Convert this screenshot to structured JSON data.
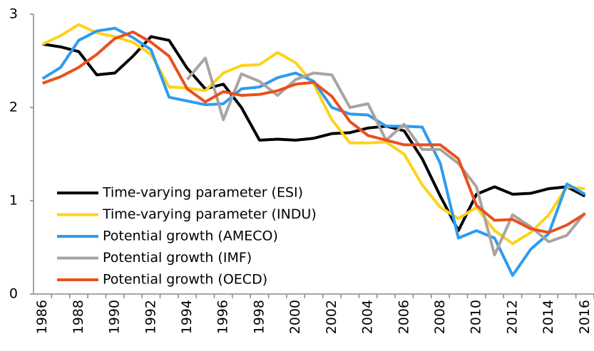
{
  "chart_data": {
    "type": "line",
    "categories": [
      "1986",
      null,
      "1988",
      null,
      "1990",
      null,
      "1992",
      null,
      "1994",
      null,
      "1996",
      null,
      "1998",
      null,
      "2000",
      null,
      "2002",
      null,
      "2004",
      null,
      "2006",
      null,
      "2008",
      null,
      "2010",
      null,
      "2012",
      null,
      "2014",
      null,
      "2016"
    ],
    "ylim": [
      0,
      3
    ],
    "yticks": [
      0,
      1,
      2,
      3
    ],
    "legend": "middle-left",
    "series": [
      {
        "name": "Time-varying parameter (ESI)",
        "color": "#000000",
        "values": [
          2.68,
          2.65,
          2.6,
          2.35,
          2.37,
          2.55,
          2.76,
          2.72,
          2.42,
          2.2,
          2.25,
          2.0,
          1.65,
          1.66,
          1.65,
          1.67,
          1.72,
          1.73,
          1.78,
          1.8,
          1.75,
          1.45,
          1.05,
          0.68,
          1.07,
          1.15,
          1.07,
          1.08,
          1.13,
          1.15,
          1.05
        ]
      },
      {
        "name": "Time-varying parameter (INDU)",
        "color": "#ffd21a",
        "values": [
          2.68,
          2.77,
          2.89,
          2.8,
          2.76,
          2.7,
          2.57,
          2.22,
          2.21,
          2.18,
          2.37,
          2.45,
          2.46,
          2.59,
          2.48,
          2.25,
          1.87,
          1.62,
          1.62,
          1.63,
          1.5,
          1.17,
          0.93,
          0.81,
          0.93,
          0.68,
          0.54,
          0.66,
          0.85,
          1.15,
          1.13
        ]
      },
      {
        "name": "Potential growth (AMECO)",
        "color": "#2e9bf0",
        "values": [
          2.31,
          2.43,
          2.72,
          2.82,
          2.85,
          2.75,
          2.62,
          2.11,
          2.07,
          2.03,
          2.04,
          2.2,
          2.22,
          2.32,
          2.37,
          2.28,
          2.0,
          1.93,
          1.92,
          1.8,
          1.8,
          1.79,
          1.4,
          0.6,
          0.68,
          0.6,
          0.2,
          0.48,
          0.65,
          1.18,
          1.07
        ]
      },
      {
        "name": "Potential growth (IMF)",
        "color": "#aaa39e",
        "values": [
          null,
          null,
          null,
          null,
          null,
          null,
          null,
          null,
          2.3,
          2.53,
          1.87,
          2.36,
          2.28,
          2.13,
          2.3,
          2.37,
          2.35,
          2.0,
          2.04,
          1.65,
          1.82,
          1.55,
          1.55,
          1.4,
          1.15,
          0.42,
          0.85,
          0.72,
          0.56,
          0.63,
          0.87
        ]
      },
      {
        "name": "Potential growth (OECD)",
        "color": "#e8501e",
        "values": [
          2.26,
          2.33,
          2.43,
          2.57,
          2.74,
          2.81,
          2.7,
          2.55,
          2.2,
          2.06,
          2.17,
          2.13,
          2.14,
          2.18,
          2.25,
          2.27,
          2.12,
          1.85,
          1.7,
          1.65,
          1.6,
          1.6,
          1.6,
          1.45,
          0.95,
          0.79,
          0.8,
          0.7,
          0.66,
          0.74,
          0.86
        ]
      }
    ]
  }
}
